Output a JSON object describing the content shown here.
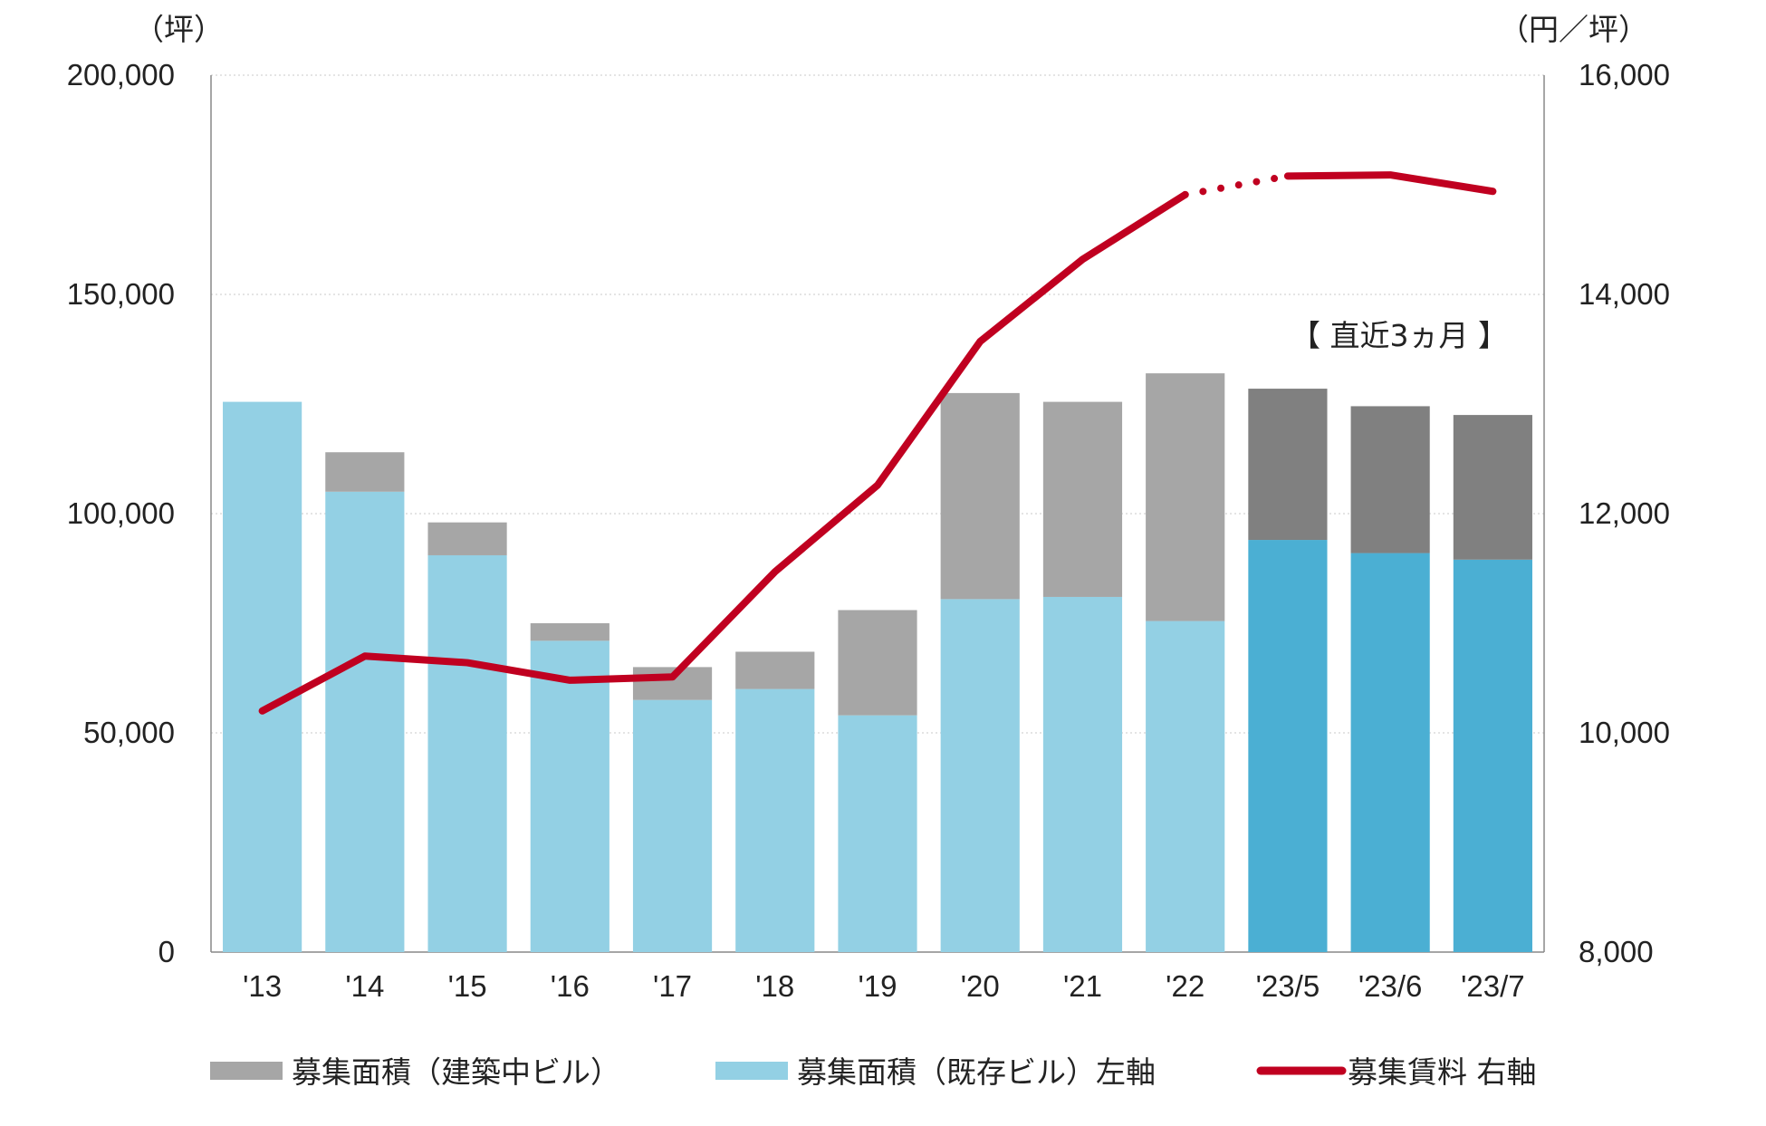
{
  "chart_data": {
    "type": "bar",
    "subtype": "stacked-bar-with-line",
    "categories": [
      "'13",
      "'14",
      "'15",
      "'16",
      "'17",
      "'18",
      "'19",
      "'20",
      "'21",
      "'22",
      "'23/5",
      "'23/6",
      "'23/7"
    ],
    "series": [
      {
        "name": "募集面積（既存ビル）",
        "type": "bar",
        "axis": "left",
        "values": [
          125500,
          105000,
          90500,
          71000,
          57500,
          60000,
          54000,
          80500,
          81000,
          75500,
          94000,
          91000,
          89500
        ],
        "colors": [
          "#93d0e4",
          "#93d0e4",
          "#93d0e4",
          "#93d0e4",
          "#93d0e4",
          "#93d0e4",
          "#93d0e4",
          "#93d0e4",
          "#93d0e4",
          "#93d0e4",
          "#4bafd3",
          "#4bafd3",
          "#4bafd3"
        ]
      },
      {
        "name": "募集面積（建築中ビル）",
        "type": "bar",
        "axis": "left",
        "values": [
          0,
          9000,
          7500,
          4000,
          7500,
          8500,
          24000,
          47000,
          44500,
          56500,
          34500,
          33500,
          33000
        ],
        "colors": [
          "#a6a6a6",
          "#a6a6a6",
          "#a6a6a6",
          "#a6a6a6",
          "#a6a6a6",
          "#a6a6a6",
          "#a6a6a6",
          "#a6a6a6",
          "#a6a6a6",
          "#a6a6a6",
          "#808080",
          "#808080",
          "#808080"
        ]
      },
      {
        "name": "募集賃料",
        "type": "line",
        "axis": "right",
        "values": [
          10200,
          10700,
          10640,
          10480,
          10510,
          11470,
          12260,
          13570,
          14320,
          14910,
          15080,
          15090,
          14940
        ],
        "color": "#c00020",
        "dotted_segment_after_index": 9
      }
    ],
    "left_axis": {
      "unit_label": "（坪）",
      "ylim": [
        0,
        200000
      ],
      "ticks": [
        "0",
        "50,000",
        "100,000",
        "150,000",
        "200,000"
      ]
    },
    "right_axis": {
      "unit_label": "（円／坪）",
      "ylim": [
        8000,
        16000
      ],
      "ticks": [
        "8,000",
        "10,000",
        "12,000",
        "14,000",
        "16,000"
      ]
    },
    "annotation": "【 直近3ヵ月 】",
    "grid": true,
    "legend": {
      "placement": "bottom",
      "items": [
        {
          "label": "募集面積（建築中ビル）",
          "color": "#a6a6a6",
          "kind": "bar"
        },
        {
          "label": "募集面積（既存ビル）左軸",
          "color": "#93d0e4",
          "kind": "bar"
        },
        {
          "label": "募集賃料 右軸",
          "color": "#c00020",
          "kind": "line"
        }
      ]
    }
  }
}
